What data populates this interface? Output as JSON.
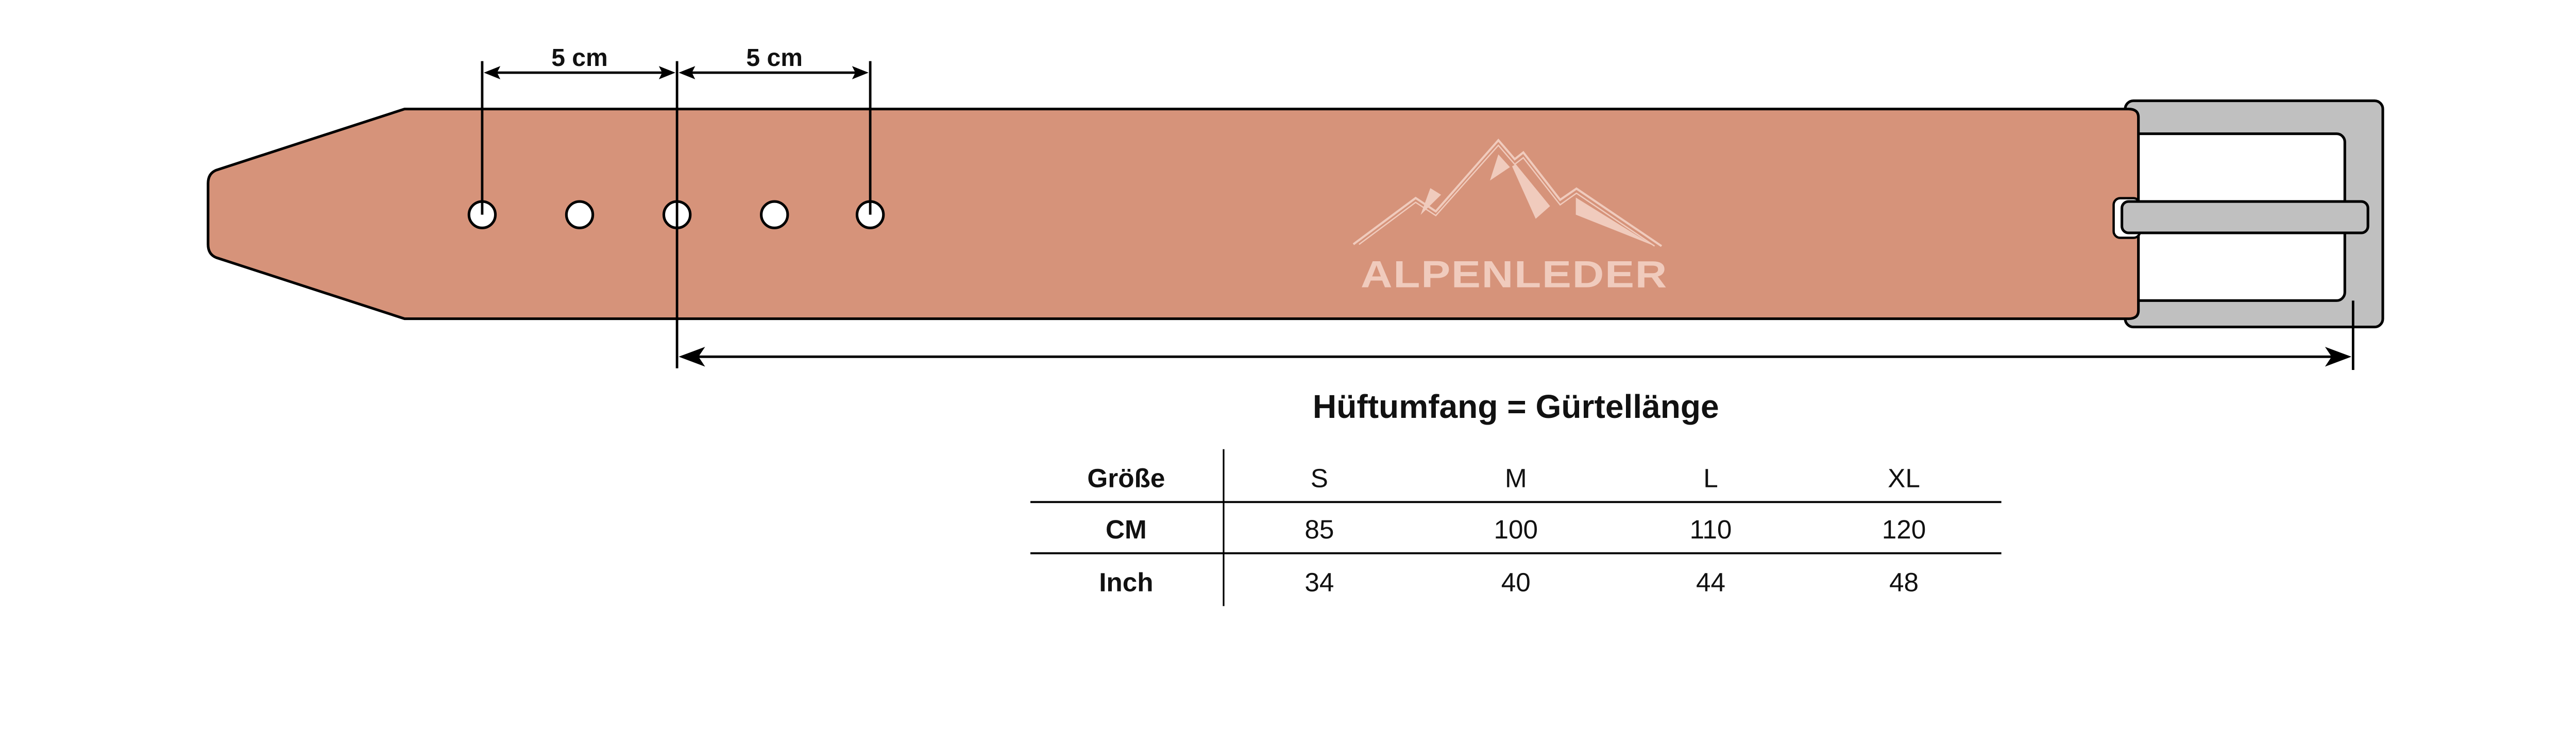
{
  "colors": {
    "leather": "#d6937a",
    "buckle": "#c0c0c0",
    "logo": "#f0cbbd",
    "outline": "#000000"
  },
  "dimensions": {
    "hole_spacing_1": "5 cm",
    "hole_spacing_2": "5 cm",
    "title": "Hüftumfang = Gürtellänge"
  },
  "logo": {
    "brand": "ALPENLEDER"
  },
  "size_table": {
    "header": [
      "Größe",
      "S",
      "M",
      "L",
      "XL"
    ],
    "rows": [
      [
        "CM",
        "85",
        "100",
        "110",
        "120"
      ],
      [
        "Inch",
        "34",
        "40",
        "44",
        "48"
      ]
    ]
  }
}
